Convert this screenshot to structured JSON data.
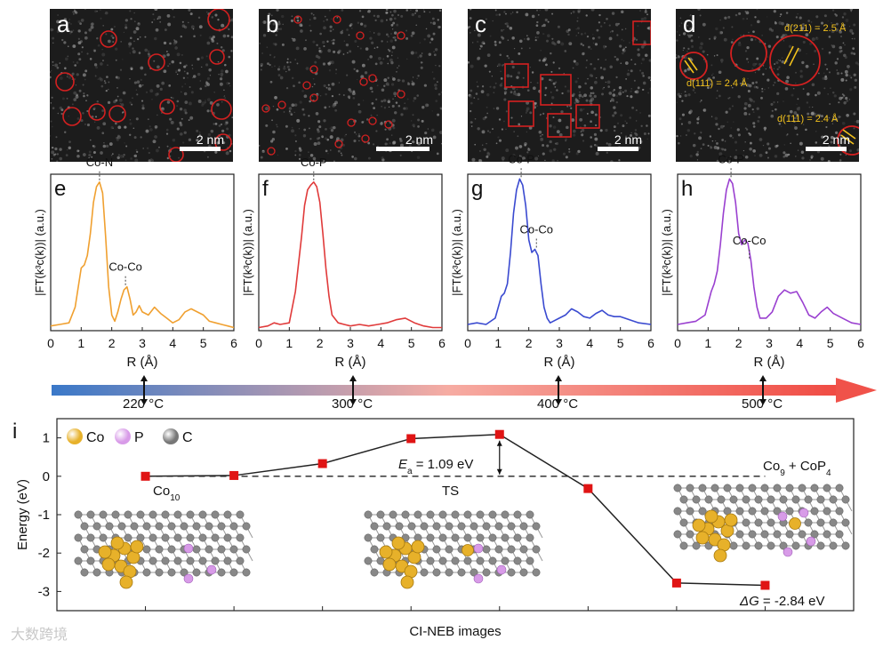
{
  "micrographs": [
    {
      "label": "a",
      "scale": "2 nm"
    },
    {
      "label": "b",
      "scale": "2 nm"
    },
    {
      "label": "c",
      "scale": "2 nm"
    },
    {
      "label": "d",
      "scale": "2 nm",
      "annotations": [
        "d(211) = 2.5 Å",
        "d(111) = 2.4 Å",
        "d(111) = 2.4 Å"
      ]
    }
  ],
  "chart_data": [
    {
      "panel": "e",
      "type": "line",
      "color": "#f0a030",
      "xlabel": "R (Å)",
      "ylabel": "|FT(k³c(k))| (a.u.)",
      "xlim": [
        0,
        6
      ],
      "ylim": [
        0,
        1
      ],
      "x_ticks": [
        "0",
        "1",
        "2",
        "3",
        "4",
        "5",
        "6"
      ],
      "peaks": [
        {
          "label": "Co-N",
          "x": 1.6
        },
        {
          "label": "Co-Co",
          "x": 2.45
        }
      ],
      "x": [
        0.0,
        0.3,
        0.6,
        0.8,
        1.0,
        1.1,
        1.2,
        1.3,
        1.4,
        1.5,
        1.6,
        1.7,
        1.8,
        1.9,
        2.0,
        2.1,
        2.2,
        2.3,
        2.4,
        2.5,
        2.6,
        2.7,
        2.8,
        2.9,
        3.0,
        3.2,
        3.4,
        3.6,
        3.8,
        4.0,
        4.2,
        4.4,
        4.6,
        4.8,
        5.0,
        5.2,
        5.4,
        5.6,
        5.8,
        6.0
      ],
      "y": [
        0.03,
        0.04,
        0.05,
        0.15,
        0.4,
        0.42,
        0.48,
        0.62,
        0.82,
        0.92,
        0.95,
        0.88,
        0.6,
        0.28,
        0.1,
        0.06,
        0.12,
        0.2,
        0.26,
        0.28,
        0.2,
        0.1,
        0.12,
        0.16,
        0.12,
        0.1,
        0.15,
        0.11,
        0.08,
        0.05,
        0.07,
        0.12,
        0.14,
        0.12,
        0.1,
        0.06,
        0.05,
        0.04,
        0.03,
        0.02
      ]
    },
    {
      "panel": "f",
      "type": "line",
      "color": "#e03a3a",
      "xlabel": "R (Å)",
      "ylabel": "|FT(k³c(k))| (a.u.)",
      "xlim": [
        0,
        6
      ],
      "ylim": [
        0,
        1
      ],
      "x_ticks": [
        "0",
        "1",
        "2",
        "3",
        "4",
        "5",
        "6"
      ],
      "peaks": [
        {
          "label": "Co-P",
          "x": 1.8
        }
      ],
      "x": [
        0.0,
        0.3,
        0.5,
        0.7,
        1.0,
        1.2,
        1.4,
        1.5,
        1.6,
        1.7,
        1.8,
        1.9,
        2.0,
        2.1,
        2.2,
        2.3,
        2.4,
        2.6,
        2.8,
        3.0,
        3.3,
        3.6,
        3.9,
        4.2,
        4.5,
        4.8,
        5.1,
        5.4,
        5.7,
        6.0
      ],
      "y": [
        0.02,
        0.03,
        0.05,
        0.04,
        0.05,
        0.25,
        0.6,
        0.8,
        0.9,
        0.93,
        0.95,
        0.92,
        0.82,
        0.62,
        0.4,
        0.22,
        0.1,
        0.05,
        0.04,
        0.03,
        0.04,
        0.03,
        0.04,
        0.05,
        0.07,
        0.08,
        0.05,
        0.03,
        0.02,
        0.02
      ]
    },
    {
      "panel": "g",
      "type": "line",
      "color": "#3a4ad0",
      "xlabel": "R (Å)",
      "ylabel": "|FT(k³c(k))| (a.u.)",
      "xlim": [
        0,
        6
      ],
      "ylim": [
        0,
        1
      ],
      "x_ticks": [
        "0",
        "1",
        "2",
        "3",
        "4",
        "5",
        "6"
      ],
      "peaks": [
        {
          "label": "Co-P",
          "x": 1.75
        },
        {
          "label": "Co-Co",
          "x": 2.25
        }
      ],
      "x": [
        0.0,
        0.3,
        0.6,
        0.9,
        1.1,
        1.2,
        1.3,
        1.4,
        1.5,
        1.6,
        1.7,
        1.8,
        1.9,
        2.0,
        2.1,
        2.2,
        2.3,
        2.4,
        2.5,
        2.6,
        2.7,
        2.8,
        3.0,
        3.2,
        3.4,
        3.6,
        3.8,
        4.0,
        4.2,
        4.4,
        4.6,
        4.8,
        5.0,
        5.3,
        5.6,
        6.0
      ],
      "y": [
        0.04,
        0.05,
        0.04,
        0.08,
        0.22,
        0.24,
        0.3,
        0.5,
        0.75,
        0.9,
        0.97,
        0.93,
        0.8,
        0.58,
        0.5,
        0.52,
        0.48,
        0.3,
        0.15,
        0.08,
        0.05,
        0.06,
        0.08,
        0.1,
        0.14,
        0.12,
        0.09,
        0.08,
        0.11,
        0.13,
        0.1,
        0.09,
        0.09,
        0.07,
        0.05,
        0.04
      ]
    },
    {
      "panel": "h",
      "type": "line",
      "color": "#9a40d0",
      "xlabel": "R (Å)",
      "ylabel": "|FT(k³c(k))| (a.u.)",
      "xlim": [
        0,
        6
      ],
      "ylim": [
        0,
        1
      ],
      "x_ticks": [
        "0",
        "1",
        "2",
        "3",
        "4",
        "5",
        "6"
      ],
      "peaks": [
        {
          "label": "Co-P",
          "x": 1.75
        },
        {
          "label": "Co-Co",
          "x": 2.35
        }
      ],
      "x": [
        0.0,
        0.3,
        0.6,
        0.9,
        1.1,
        1.2,
        1.3,
        1.4,
        1.5,
        1.6,
        1.7,
        1.8,
        1.9,
        2.0,
        2.1,
        2.2,
        2.3,
        2.4,
        2.5,
        2.6,
        2.7,
        2.9,
        3.1,
        3.3,
        3.5,
        3.7,
        3.9,
        4.1,
        4.3,
        4.5,
        4.7,
        4.9,
        5.1,
        5.4,
        5.7,
        6.0
      ],
      "y": [
        0.04,
        0.05,
        0.06,
        0.1,
        0.25,
        0.3,
        0.38,
        0.55,
        0.75,
        0.9,
        0.97,
        0.94,
        0.82,
        0.62,
        0.55,
        0.58,
        0.56,
        0.45,
        0.28,
        0.15,
        0.08,
        0.08,
        0.12,
        0.22,
        0.26,
        0.24,
        0.25,
        0.18,
        0.1,
        0.08,
        0.12,
        0.15,
        0.11,
        0.08,
        0.05,
        0.04
      ]
    },
    {
      "panel": "i",
      "type": "scatter",
      "xlabel": "CI-NEB images",
      "ylabel": "Energy (eV)",
      "xlim": [
        -1,
        8
      ],
      "ylim": [
        -3.5,
        1.5
      ],
      "y_ticks": [
        "1",
        "0",
        "-1",
        "-2",
        "-3"
      ],
      "x": [
        0,
        1,
        2,
        3,
        4,
        5,
        6,
        7
      ],
      "y": [
        0.0,
        0.02,
        0.33,
        0.98,
        1.09,
        -0.32,
        -2.78,
        -2.84
      ],
      "dashed_level": 0.0,
      "labels": {
        "initial": "Co",
        "initial_sub": "10",
        "ts": "TS",
        "final_a": "Co",
        "final_sub1": "9",
        "final_b": " + CoP",
        "final_sub2": "4",
        "ea_italic": "E",
        "ea_sub": "a",
        "ea_value": " = 1.09 eV",
        "dg_italic": "ΔG",
        "dg_value": " = -2.84 eV"
      },
      "legend": [
        {
          "label": "Co",
          "color": "#e7b12a"
        },
        {
          "label": "P",
          "color": "#d89be8"
        },
        {
          "label": "C",
          "color": "#777777"
        }
      ]
    }
  ],
  "temperature_bar": {
    "labels": [
      "220 °C",
      "300 °C",
      "400 °C",
      "500 °C"
    ],
    "start_color": "#3a78c8",
    "end_color": "#f04a42"
  },
  "watermark": "大数跨境"
}
